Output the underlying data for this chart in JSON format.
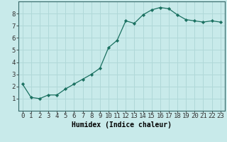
{
  "x": [
    0,
    1,
    2,
    3,
    4,
    5,
    6,
    7,
    8,
    9,
    10,
    11,
    12,
    13,
    14,
    15,
    16,
    17,
    18,
    19,
    20,
    21,
    22,
    23
  ],
  "y": [
    2.2,
    1.1,
    1.0,
    1.3,
    1.3,
    1.8,
    2.2,
    2.6,
    3.0,
    3.5,
    5.2,
    5.8,
    7.4,
    7.2,
    7.9,
    8.3,
    8.5,
    8.4,
    7.9,
    7.5,
    7.4,
    7.3,
    7.4,
    7.3
  ],
  "xlabel": "Humidex (Indice chaleur)",
  "line_color": "#1a7060",
  "marker_color": "#1a7060",
  "bg_color": "#c8eaea",
  "grid_color": "#b0d8d8",
  "xlim": [
    -0.5,
    23.5
  ],
  "ylim": [
    0,
    9
  ],
  "yticks": [
    1,
    2,
    3,
    4,
    5,
    6,
    7,
    8
  ],
  "xtick_labels": [
    "0",
    "1",
    "2",
    "3",
    "4",
    "5",
    "6",
    "7",
    "8",
    "9",
    "10",
    "11",
    "12",
    "13",
    "14",
    "15",
    "16",
    "17",
    "18",
    "19",
    "20",
    "21",
    "22",
    "23"
  ],
  "xlabel_fontsize": 7,
  "tick_fontsize": 6.5
}
